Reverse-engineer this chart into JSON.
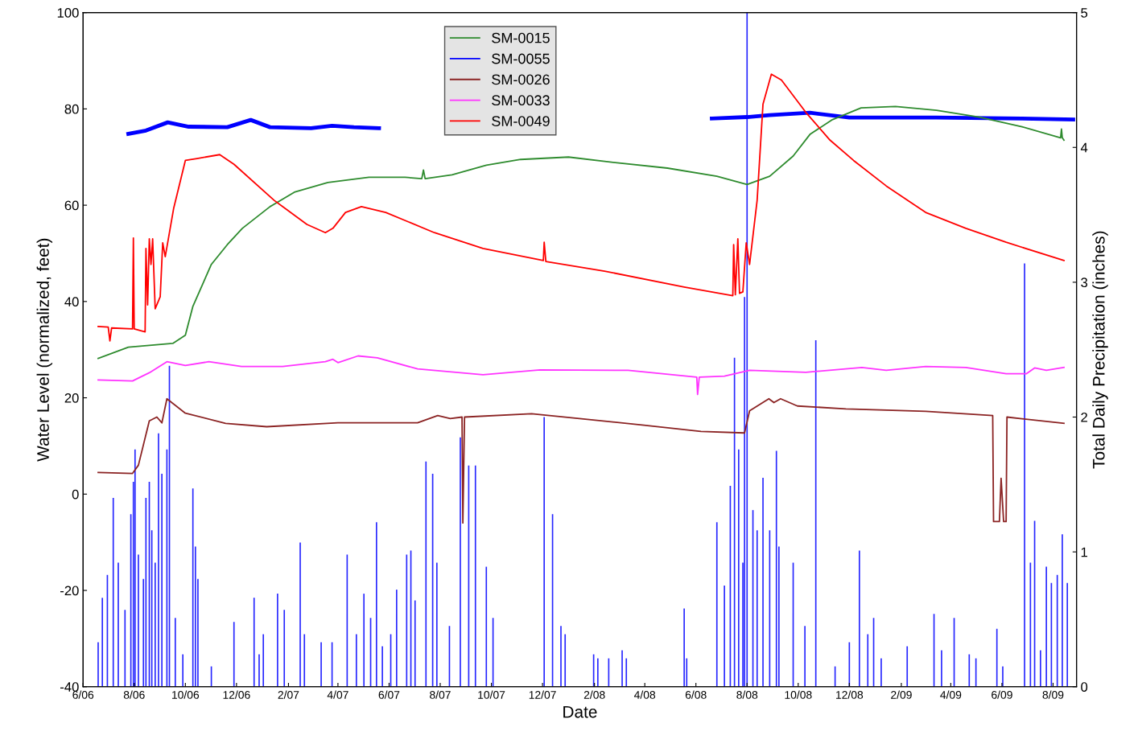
{
  "chart_data": {
    "type": "line",
    "xlabel": "Date",
    "ylabel": "Water Level (normalized, feet)",
    "y2label": "Total Daily Precipitation (inches)",
    "xlim": [
      "2006-06-01",
      "2009-08-29"
    ],
    "xticks": [
      {
        "value": "2006-06-01",
        "label": "6/06"
      },
      {
        "value": "2006-08-01",
        "label": "8/06"
      },
      {
        "value": "2006-10-01",
        "label": "10/06"
      },
      {
        "value": "2006-12-01",
        "label": "12/06"
      },
      {
        "value": "2007-02-01",
        "label": "2/07"
      },
      {
        "value": "2007-04-01",
        "label": "4/07"
      },
      {
        "value": "2007-06-01",
        "label": "6/07"
      },
      {
        "value": "2007-08-01",
        "label": "8/07"
      },
      {
        "value": "2007-10-01",
        "label": "10/07"
      },
      {
        "value": "2007-12-01",
        "label": "12/07"
      },
      {
        "value": "2008-02-01",
        "label": "2/08"
      },
      {
        "value": "2008-04-01",
        "label": "4/08"
      },
      {
        "value": "2008-06-01",
        "label": "6/08"
      },
      {
        "value": "2008-08-01",
        "label": "8/08"
      },
      {
        "value": "2008-10-01",
        "label": "10/08"
      },
      {
        "value": "2008-12-01",
        "label": "12/08"
      },
      {
        "value": "2009-02-01",
        "label": "2/09"
      },
      {
        "value": "2009-04-01",
        "label": "4/09"
      },
      {
        "value": "2009-06-01",
        "label": "6/09"
      },
      {
        "value": "2009-08-01",
        "label": "8/09"
      }
    ],
    "ylim": [
      -40,
      100
    ],
    "yticks": [
      -40,
      -20,
      0,
      20,
      40,
      60,
      80,
      100
    ],
    "y2lim": [
      0,
      5
    ],
    "y2ticks": [
      0,
      1,
      2,
      3,
      4,
      5
    ],
    "grid": false,
    "legend": "top",
    "series": [
      {
        "type": "bar",
        "axis": "y2",
        "color": "#0000ff",
        "x": [
          "2006-06-19",
          "2006-06-24",
          "2006-06-30",
          "2006-07-07",
          "2006-07-13",
          "2006-07-21",
          "2006-07-28",
          "2006-07-31",
          "2006-08-02",
          "2006-08-06",
          "2006-08-12",
          "2006-08-15",
          "2006-08-19",
          "2006-08-22",
          "2006-08-26",
          "2006-08-30",
          "2006-09-03",
          "2006-09-09",
          "2006-09-12",
          "2006-09-19",
          "2006-09-28",
          "2006-10-10",
          "2006-10-13",
          "2006-10-16",
          "2006-11-01",
          "2006-11-28",
          "2006-12-22",
          "2006-12-28",
          "2007-01-02",
          "2007-01-19",
          "2007-01-27",
          "2007-02-15",
          "2007-02-20",
          "2007-03-12",
          "2007-03-25",
          "2007-04-12",
          "2007-04-23",
          "2007-05-02",
          "2007-05-10",
          "2007-05-17",
          "2007-05-24",
          "2007-06-03",
          "2007-06-10",
          "2007-06-22",
          "2007-06-27",
          "2007-07-02",
          "2007-07-15",
          "2007-07-23",
          "2007-07-28",
          "2007-08-12",
          "2007-08-25",
          "2007-09-04",
          "2007-09-12",
          "2007-09-25",
          "2007-10-03",
          "2007-12-03",
          "2007-12-13",
          "2007-12-23",
          "2007-12-28",
          "2008-01-31",
          "2008-02-05",
          "2008-02-18",
          "2008-03-05",
          "2008-03-10",
          "2008-05-18",
          "2008-05-21",
          "2008-06-26",
          "2008-07-05",
          "2008-07-12",
          "2008-07-17",
          "2008-07-22",
          "2008-07-27",
          "2008-07-29",
          "2008-08-01",
          "2008-08-08",
          "2008-08-13",
          "2008-08-20",
          "2008-08-28",
          "2008-09-05",
          "2008-09-08",
          "2008-09-25",
          "2008-10-09",
          "2008-10-22",
          "2008-11-14",
          "2008-12-01",
          "2008-12-13",
          "2008-12-23",
          "2008-12-30",
          "2009-01-08",
          "2009-02-08",
          "2009-03-12",
          "2009-03-21",
          "2009-04-05",
          "2009-04-23",
          "2009-05-01",
          "2009-05-26",
          "2009-06-02",
          "2009-06-28",
          "2009-07-05",
          "2009-07-10",
          "2009-07-17",
          "2009-07-24",
          "2009-07-30",
          "2009-08-06",
          "2009-08-12",
          "2009-08-18"
        ],
        "values": [
          0.33,
          0.66,
          0.83,
          1.4,
          0.92,
          0.57,
          1.28,
          1.52,
          1.76,
          0.98,
          0.8,
          1.4,
          1.52,
          1.16,
          0.92,
          1.88,
          1.58,
          1.76,
          2.38,
          0.51,
          0.24,
          1.47,
          1.04,
          0.8,
          0.15,
          0.48,
          0.66,
          0.24,
          0.39,
          0.69,
          0.57,
          1.07,
          0.39,
          0.33,
          0.33,
          0.98,
          0.39,
          0.69,
          0.51,
          1.22,
          0.3,
          0.39,
          0.72,
          0.98,
          1.01,
          0.64,
          1.67,
          1.58,
          0.92,
          0.45,
          1.85,
          1.64,
          1.64,
          0.89,
          0.51,
          2.0,
          1.28,
          0.45,
          0.39,
          0.24,
          0.21,
          0.21,
          0.27,
          0.21,
          0.58,
          0.21,
          1.22,
          0.75,
          1.49,
          2.44,
          1.76,
          0.92,
          2.89,
          5.0,
          1.31,
          1.16,
          1.55,
          1.16,
          1.75,
          1.04,
          0.92,
          0.45,
          2.57,
          0.15,
          0.33,
          1.01,
          0.39,
          0.51,
          0.21,
          0.3,
          0.54,
          0.27,
          0.51,
          0.24,
          0.21,
          0.43,
          0.15,
          3.14,
          0.92,
          1.23,
          0.27,
          0.89,
          0.77,
          0.83,
          1.13,
          0.77
        ]
      },
      {
        "name": "SM-0015",
        "color": "#2e8b2e",
        "x": [
          "2006-06-19",
          "2006-07-25",
          "2006-09-16",
          "2006-10-01",
          "2006-10-10",
          "2006-11-01",
          "2006-11-20",
          "2006-12-08",
          "2007-01-10",
          "2007-02-08",
          "2007-03-20",
          "2007-05-08",
          "2007-06-20",
          "2007-07-10",
          "2007-07-12",
          "2007-07-14",
          "2007-08-15",
          "2007-09-25",
          "2007-11-05",
          "2008-01-01",
          "2008-02-28",
          "2008-04-28",
          "2008-06-26",
          "2008-08-01",
          "2008-08-28",
          "2008-09-25",
          "2008-10-15",
          "2008-11-10",
          "2008-12-15",
          "2009-01-25",
          "2009-03-15",
          "2009-05-05",
          "2009-06-25",
          "2009-08-10",
          "2009-08-11",
          "2009-08-12",
          "2009-08-14"
        ],
        "values": [
          28.2,
          30.5,
          31.3,
          33,
          39,
          47.7,
          51.8,
          55.2,
          59.7,
          62.7,
          64.7,
          65.8,
          65.8,
          65.5,
          67.3,
          65.5,
          66.3,
          68.3,
          69.5,
          70,
          68.8,
          67.7,
          66,
          64.3,
          66,
          70.2,
          74.7,
          77.7,
          80.2,
          80.5,
          79.7,
          78.3,
          76.3,
          74,
          75.8,
          74,
          73.5
        ]
      },
      {
        "name": "SM-0055",
        "color": "#0000ff",
        "line_style": "solid",
        "x": [
          "2006-07-25",
          "2006-08-15",
          "2006-09-10",
          "2006-10-05",
          "2006-11-20",
          "2006-12-18",
          "2007-01-10",
          "2007-02-28",
          "2007-03-25",
          "2007-04-20",
          "2007-05-20",
          "2008-01-01",
          "2008-06-20",
          "2008-08-01",
          "2008-08-28",
          "2008-10-15",
          "2008-12-01",
          "2009-03-15",
          "2009-06-25",
          "2009-08-25"
        ],
        "values": [
          74.8,
          75.5,
          77.2,
          76.3,
          76.2,
          77.7,
          76.2,
          76,
          76.5,
          76.2,
          76,
          null,
          78,
          78.3,
          78.7,
          79.2,
          78.2,
          78.2,
          78,
          77.8
        ]
      },
      {
        "name": "SM-0026",
        "color": "#8b2323",
        "x": [
          "2006-06-19",
          "2006-07-30",
          "2006-08-06",
          "2006-08-19",
          "2006-08-28",
          "2006-09-03",
          "2006-09-09",
          "2006-10-01",
          "2006-11-18",
          "2007-01-06",
          "2007-04-01",
          "2007-07-05",
          "2007-07-29",
          "2007-08-13",
          "2007-08-27",
          "2007-08-28",
          "2007-08-30",
          "2007-11-18",
          "2008-01-14",
          "2008-03-31",
          "2008-06-07",
          "2008-07-29",
          "2008-08-04",
          "2008-08-27",
          "2008-09-02",
          "2008-09-10",
          "2008-09-30",
          "2008-11-27",
          "2009-03-02",
          "2009-05-21",
          "2009-05-22",
          "2009-05-29",
          "2009-05-31",
          "2009-06-03",
          "2009-06-06",
          "2009-06-07",
          "2009-08-14"
        ],
        "values": [
          4.5,
          4.3,
          6,
          15.2,
          16,
          14.8,
          19.8,
          16.8,
          14.7,
          14,
          14.8,
          14.8,
          16.3,
          15.7,
          16,
          -6,
          16,
          16.7,
          15.7,
          14.3,
          13,
          12.7,
          17.3,
          19.8,
          19,
          19.8,
          18.3,
          17.7,
          17.2,
          16.3,
          -5.7,
          -5.7,
          3.3,
          -5.7,
          -5.7,
          16,
          14.7
        ]
      },
      {
        "name": "SM-0033",
        "color": "#ff33ff",
        "x": [
          "2006-06-19",
          "2006-07-30",
          "2006-08-19",
          "2006-09-09",
          "2006-10-01",
          "2006-10-29",
          "2006-12-07",
          "2007-01-25",
          "2007-03-17",
          "2007-03-26",
          "2007-04-01",
          "2007-04-25",
          "2007-05-18",
          "2007-07-05",
          "2007-09-21",
          "2007-11-28",
          "2008-03-12",
          "2008-06-02",
          "2008-06-03",
          "2008-06-05",
          "2008-07-05",
          "2008-08-04",
          "2008-10-10",
          "2008-12-16",
          "2009-01-14",
          "2009-03-02",
          "2009-04-19",
          "2009-06-06",
          "2009-06-30",
          "2009-07-10",
          "2009-07-24",
          "2009-08-14"
        ],
        "values": [
          23.7,
          23.5,
          25.2,
          27.5,
          26.7,
          27.5,
          26.5,
          26.5,
          27.5,
          28,
          27.3,
          28.7,
          28.3,
          26,
          24.8,
          25.8,
          25.7,
          24.3,
          20.7,
          24.3,
          24.5,
          25.7,
          25.3,
          26.3,
          25.7,
          26.5,
          26.3,
          25,
          25,
          26.2,
          25.7,
          26.3
        ]
      },
      {
        "name": "SM-0049",
        "color": "#ff0000",
        "x": [
          "2006-06-19",
          "2006-07-01",
          "2006-07-03",
          "2006-07-05",
          "2006-07-30",
          "2006-07-31",
          "2006-08-01",
          "2006-08-14",
          "2006-08-15",
          "2006-08-17",
          "2006-08-19",
          "2006-08-21",
          "2006-08-23",
          "2006-08-26",
          "2006-09-01",
          "2006-09-04",
          "2006-09-07",
          "2006-09-17",
          "2006-10-01",
          "2006-10-15",
          "2006-11-11",
          "2006-11-28",
          "2007-01-15",
          "2007-02-23",
          "2007-03-17",
          "2007-03-26",
          "2007-04-10",
          "2007-04-29",
          "2007-05-28",
          "2007-07-25",
          "2007-09-21",
          "2007-12-02",
          "2007-12-03",
          "2007-12-05",
          "2008-02-13",
          "2008-05-18",
          "2008-07-15",
          "2008-07-16",
          "2008-07-18",
          "2008-07-21",
          "2008-07-23",
          "2008-07-27",
          "2008-07-31",
          "2008-08-04",
          "2008-08-13",
          "2008-08-20",
          "2008-08-30",
          "2008-09-11",
          "2008-10-10",
          "2008-11-08",
          "2008-12-06",
          "2009-01-14",
          "2009-03-02",
          "2009-04-19",
          "2009-06-06",
          "2009-08-14"
        ],
        "values": [
          34.8,
          34.7,
          31.8,
          34.5,
          34.3,
          53.2,
          34.3,
          33.7,
          51,
          39.3,
          53,
          47.7,
          53,
          38.5,
          41,
          52.2,
          49.3,
          59.3,
          69.3,
          69.7,
          70.5,
          68.5,
          61,
          56,
          54.3,
          55.2,
          58.5,
          59.7,
          58.5,
          54.3,
          51,
          48.5,
          52.3,
          48.3,
          46.3,
          43,
          41.2,
          51.8,
          41.4,
          53,
          41.7,
          42,
          52.2,
          47.7,
          61,
          81,
          87.2,
          86,
          79.3,
          73.5,
          69.3,
          64,
          58.5,
          55.2,
          52.3,
          48.5
        ]
      }
    ]
  }
}
